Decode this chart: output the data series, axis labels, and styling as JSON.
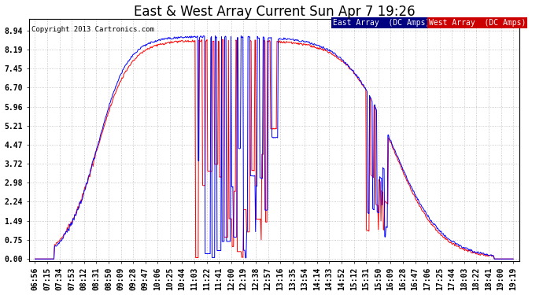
{
  "title": "East & West Array Current Sun Apr 7 19:26",
  "copyright": "Copyright 2013 Cartronics.com",
  "legend_east": "East Array  (DC Amps)",
  "legend_west": "West Array  (DC Amps)",
  "east_color": "#0000FF",
  "west_color": "#FF0000",
  "legend_east_bg": "#000080",
  "legend_west_bg": "#CC0000",
  "yticks": [
    0.0,
    0.75,
    1.49,
    2.24,
    2.98,
    3.72,
    4.47,
    5.21,
    5.96,
    6.7,
    7.45,
    8.19,
    8.94
  ],
  "background_color": "#FFFFFF",
  "plot_bg": "#FFFFFF",
  "grid_color": "#BBBBBB",
  "xtick_labels": [
    "06:56",
    "07:15",
    "07:34",
    "07:53",
    "08:12",
    "08:31",
    "08:50",
    "09:09",
    "09:28",
    "09:47",
    "10:06",
    "10:25",
    "10:44",
    "11:03",
    "11:22",
    "11:41",
    "12:00",
    "12:19",
    "12:38",
    "12:57",
    "13:16",
    "13:35",
    "13:54",
    "14:14",
    "14:33",
    "14:52",
    "15:12",
    "15:31",
    "15:50",
    "16:09",
    "16:28",
    "16:47",
    "17:06",
    "17:25",
    "17:44",
    "18:03",
    "18:22",
    "18:41",
    "19:00",
    "19:19"
  ],
  "figsize": [
    6.9,
    3.75
  ],
  "dpi": 100,
  "title_fontsize": 12,
  "tick_fontsize": 7
}
